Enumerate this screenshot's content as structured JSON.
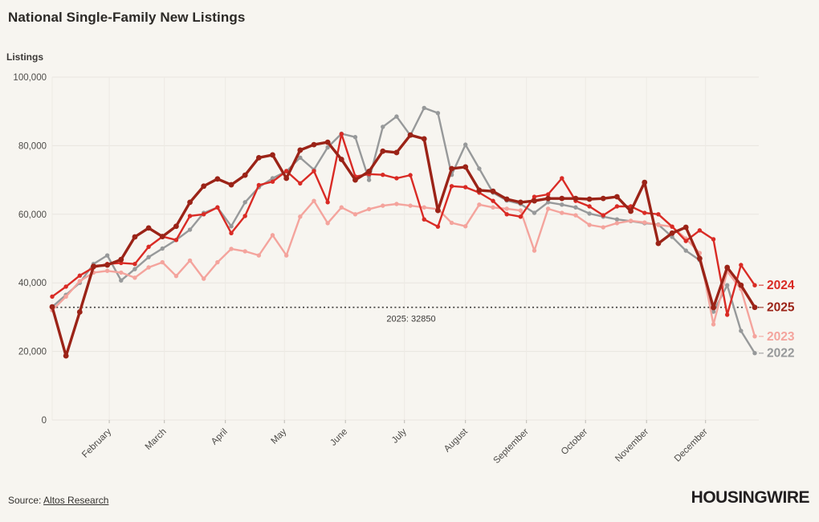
{
  "header": {
    "title": "National Single-Family New Listings"
  },
  "y_axis": {
    "label": "Listings",
    "ticks": [
      "0",
      "20,000",
      "40,000",
      "60,000",
      "80,000",
      "100,000"
    ],
    "tick_values": [
      0,
      20000,
      40000,
      60000,
      80000,
      100000
    ]
  },
  "x_axis": {
    "months": [
      "February",
      "March",
      "April",
      "May",
      "June",
      "July",
      "August",
      "September",
      "October",
      "November",
      "December"
    ]
  },
  "reference": {
    "label": "2025: 32850",
    "value": 32850
  },
  "footer": {
    "source_prefix": "Source: ",
    "source_link": "Altos Research",
    "logo": "HOUSINGWIRE"
  },
  "colors": {
    "background": "#f7f5f0",
    "grid_h": "#e8e5df",
    "grid_v": "#edeae4",
    "tick_text": "#4d4b48",
    "reference_line": "#3c3a38",
    "y2022": "#97999a",
    "y2023": "#f4a49d",
    "y2024": "#d92b25",
    "y2025": "#9b2317"
  },
  "chart_data": {
    "type": "line",
    "title": "National Single-Family New Listings",
    "ylabel": "Listings",
    "xlabel": "",
    "x_unit": "week-of-year (52 weekly points, Jan-Dec)",
    "ylim": [
      0,
      100000
    ],
    "grid": true,
    "legend_position": "right-end-labels",
    "reference_line": {
      "value": 32850,
      "label": "2025: 32850",
      "style": "dotted"
    },
    "months": [
      "February",
      "March",
      "April",
      "May",
      "June",
      "July",
      "August",
      "September",
      "October",
      "November",
      "December"
    ],
    "month_start_days": [
      31,
      59,
      90,
      120,
      151,
      181,
      212,
      243,
      273,
      304,
      334
    ],
    "series": [
      {
        "name": "2022",
        "color": "#97999a",
        "emphasis": false,
        "values": [
          33000,
          36500,
          40000,
          45500,
          48000,
          40700,
          44000,
          47500,
          50000,
          52500,
          55500,
          60400,
          62000,
          56500,
          63500,
          67900,
          70500,
          72500,
          76500,
          73000,
          79500,
          83500,
          82500,
          70000,
          85500,
          88500,
          83000,
          91000,
          89500,
          71500,
          80300,
          73300,
          66300,
          64000,
          63000,
          60400,
          63500,
          62800,
          62000,
          60200,
          59300,
          58500,
          58000,
          57400,
          57000,
          53400,
          49400,
          46600,
          31600,
          39300,
          26000,
          19500
        ]
      },
      {
        "name": "2023",
        "color": "#f4a49d",
        "emphasis": false,
        "values": [
          32000,
          36000,
          40500,
          43000,
          43500,
          43000,
          41500,
          44500,
          46000,
          42000,
          46500,
          41200,
          46000,
          49900,
          49200,
          48000,
          53900,
          48000,
          59300,
          63900,
          57400,
          62000,
          60000,
          61500,
          62500,
          63000,
          62500,
          62000,
          61500,
          57500,
          56500,
          62800,
          62000,
          61600,
          61100,
          49400,
          61600,
          60400,
          59700,
          56900,
          56200,
          57400,
          58100,
          57600,
          56900,
          56400,
          52900,
          48700,
          27900,
          43300,
          38200,
          24400
        ]
      },
      {
        "name": "2024",
        "color": "#d92b25",
        "emphasis": false,
        "values": [
          36000,
          38900,
          42100,
          44500,
          45500,
          45800,
          45500,
          50500,
          53500,
          52500,
          59500,
          60000,
          62000,
          54500,
          59500,
          68500,
          69500,
          72600,
          69000,
          72600,
          63500,
          83400,
          71000,
          71700,
          71500,
          70500,
          71400,
          58500,
          56400,
          68200,
          67900,
          66300,
          63900,
          60000,
          59300,
          65100,
          65800,
          70500,
          63900,
          62300,
          59700,
          62300,
          62300,
          60400,
          60000,
          56400,
          52200,
          55300,
          52700,
          30700,
          45200,
          39300
        ]
      },
      {
        "name": "2025",
        "color": "#9b2317",
        "emphasis": true,
        "values": [
          33000,
          18700,
          31500,
          44800,
          45200,
          46800,
          53400,
          56000,
          53500,
          56500,
          63500,
          68200,
          70300,
          68600,
          71400,
          76500,
          77300,
          70500,
          78700,
          80300,
          81000,
          76000,
          70000,
          72500,
          78400,
          78000,
          83100,
          82000,
          61100,
          73300,
          73800,
          67000,
          66700,
          64400,
          63500,
          63900,
          64600,
          64600,
          64600,
          64400,
          64600,
          65100,
          60900,
          69300,
          51500,
          54500,
          56200,
          47100,
          32800,
          44500,
          39300,
          32850
        ]
      }
    ]
  }
}
